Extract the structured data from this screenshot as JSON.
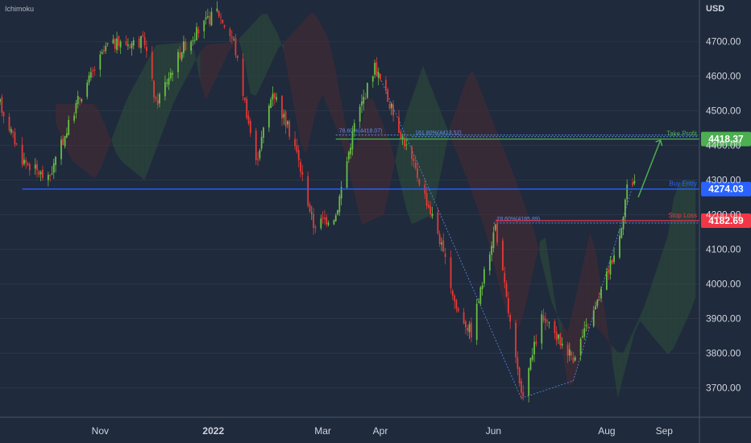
{
  "indicator_label": "Ichimoku",
  "currency_label": "USD",
  "colors": {
    "background": "#1f2a3c",
    "up": "#6abe43",
    "down": "#e53935",
    "blue_line": "#2962ff",
    "green_line": "#4caf50",
    "red_line": "#f23645",
    "cloud_green": "#2e4f3a",
    "cloud_red": "#4a2a33",
    "axis_text": "#d1d4dc"
  },
  "chart_data": {
    "type": "candlestick",
    "ylim": [
      3615,
      4820
    ],
    "yticks": [
      "4700.00",
      "4600.00",
      "4500.00",
      "4400.00",
      "4300.00",
      "4200.00",
      "4100.00",
      "4000.00",
      "3900.00",
      "3800.00",
      "3700.00"
    ],
    "ytick_values": [
      4700,
      4600,
      4500,
      4400,
      4300,
      4200,
      4100,
      4000,
      3900,
      3800,
      3700
    ],
    "xticks": [
      "Nov",
      "2022",
      "Mar",
      "Apr",
      "Jun",
      "Aug",
      "Sep"
    ],
    "xtick_dates": [
      "2021-11-01",
      "2022-01-01",
      "2022-03-01",
      "2022-04-01",
      "2022-06-01",
      "2022-08-01",
      "2022-09-01"
    ],
    "date_range": [
      "2021-09-08",
      "2022-09-20"
    ],
    "price_path": [
      {
        "date": "2021-09-08",
        "close": 4520
      },
      {
        "date": "2021-09-20",
        "close": 4360
      },
      {
        "date": "2021-10-04",
        "close": 4300
      },
      {
        "date": "2021-10-20",
        "close": 4530
      },
      {
        "date": "2021-11-05",
        "close": 4690
      },
      {
        "date": "2021-11-25",
        "close": 4700
      },
      {
        "date": "2021-12-01",
        "close": 4520
      },
      {
        "date": "2021-12-15",
        "close": 4680
      },
      {
        "date": "2022-01-03",
        "close": 4790
      },
      {
        "date": "2022-01-12",
        "close": 4700
      },
      {
        "date": "2022-01-24",
        "close": 4350
      },
      {
        "date": "2022-02-02",
        "close": 4560
      },
      {
        "date": "2022-02-14",
        "close": 4400
      },
      {
        "date": "2022-02-24",
        "close": 4170
      },
      {
        "date": "2022-03-08",
        "close": 4200
      },
      {
        "date": "2022-03-18",
        "close": 4460
      },
      {
        "date": "2022-03-29",
        "close": 4630
      },
      {
        "date": "2022-04-11",
        "close": 4450
      },
      {
        "date": "2022-04-22",
        "close": 4300
      },
      {
        "date": "2022-05-02",
        "close": 4150
      },
      {
        "date": "2022-05-12",
        "close": 3930
      },
      {
        "date": "2022-05-20",
        "close": 3860
      },
      {
        "date": "2022-06-02",
        "close": 4170
      },
      {
        "date": "2022-06-16",
        "close": 3670
      },
      {
        "date": "2022-06-27",
        "close": 3900
      },
      {
        "date": "2022-07-06",
        "close": 3840
      },
      {
        "date": "2022-07-14",
        "close": 3790
      },
      {
        "date": "2022-07-26",
        "close": 3930
      },
      {
        "date": "2022-08-08",
        "close": 4140
      },
      {
        "date": "2022-08-12",
        "close": 4280
      },
      {
        "date": "2022-08-16",
        "close": 4300
      }
    ],
    "levels": [
      {
        "name": "Take Profit",
        "value": 4418.37,
        "label": "4418.37",
        "text": "Take Profit",
        "color": "#4caf50"
      },
      {
        "name": "Buy Entry",
        "value": 4274.03,
        "label": "4274.03",
        "text": "Buy Entry",
        "color": "#2962ff"
      },
      {
        "name": "Stop Loss",
        "value": 4182.69,
        "label": "4182.69",
        "text": "Stop Loss",
        "color": "#f23645"
      }
    ],
    "fib_labels": [
      {
        "text": "78.60%(4418.07)",
        "value": 4430
      },
      {
        "text": "161.80%(4413.52)",
        "value": 4425
      },
      {
        "text": "78.60%(4185.89)",
        "value": 4176
      }
    ]
  }
}
